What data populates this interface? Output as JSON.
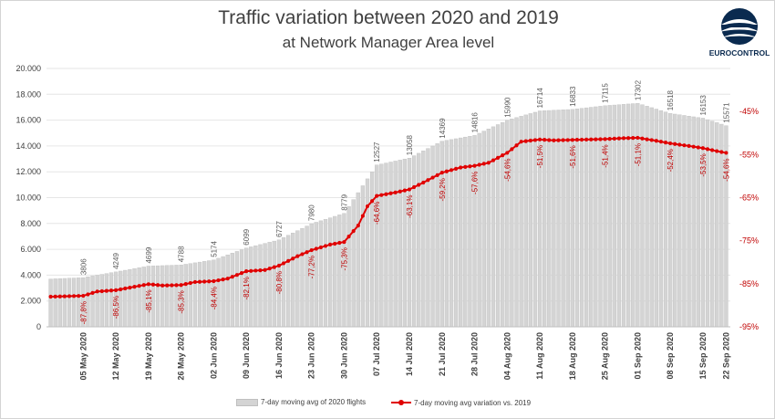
{
  "title": "Traffic variation between 2020 and 2019",
  "subtitle": "at Network Manager Area level",
  "logo": {
    "text": "EUROCONTROL",
    "color": "#0a2a4f"
  },
  "colors": {
    "bar": "#d4d4d4",
    "bar_edge": "#bfbfbf",
    "line": "#e00000",
    "line_label": "#c00000",
    "grid": "#e6e6e6",
    "axis_text": "#404040"
  },
  "chart_data": {
    "type": "bar",
    "title": "Traffic variation between 2020 and 2019",
    "subtitle": "at Network Manager Area level",
    "x_tick_labels": [
      "05 May 2020",
      "12 May 2020",
      "19 May 2020",
      "26 May 2020",
      "02 Jun 2020",
      "09 Jun 2020",
      "16 Jun 2020",
      "23 Jun 2020",
      "30 Jun 2020",
      "07 Jul 2020",
      "14 Jul 2020",
      "21 Jul 2020",
      "28 Jul 2020",
      "04 Aug 2020",
      "11 Aug 2020",
      "18 Aug 2020",
      "25 Aug 2020",
      "01 Sep 2020",
      "08 Sep 2020",
      "15 Sep 2020",
      "22 Sep 2020"
    ],
    "y_left": {
      "range": [
        0,
        20000
      ],
      "ticks": [
        "0",
        "2.000",
        "4.000",
        "6.000",
        "8.000",
        "10.000",
        "12.000",
        "14.000",
        "16.000",
        "18.000",
        "20.000"
      ]
    },
    "y_right": {
      "range": [
        -95,
        -35
      ],
      "ticks": [
        "-95%",
        "-85%",
        "-75%",
        "-65%",
        "-55%",
        "-45%"
      ]
    },
    "grid": true,
    "legend_position": "bottom",
    "series": [
      {
        "name": "7-day moving avg of 2020 flights",
        "type": "bar",
        "axis": "left",
        "anchors": [
          [
            0,
            3700
          ],
          [
            7,
            3806
          ],
          [
            14,
            4249
          ],
          [
            21,
            4699
          ],
          [
            28,
            4788
          ],
          [
            35,
            5174
          ],
          [
            42,
            6099
          ],
          [
            49,
            6727
          ],
          [
            56,
            7980
          ],
          [
            63,
            8779
          ],
          [
            70,
            12527
          ],
          [
            77,
            13058
          ],
          [
            84,
            14369
          ],
          [
            91,
            14816
          ],
          [
            98,
            15990
          ],
          [
            105,
            16714
          ],
          [
            112,
            16833
          ],
          [
            119,
            17115
          ],
          [
            126,
            17302
          ],
          [
            133,
            16518
          ],
          [
            140,
            16153
          ],
          [
            145,
            15571
          ]
        ],
        "labels": [
          {
            "day": 7,
            "value": "3806"
          },
          {
            "day": 14,
            "value": "4249"
          },
          {
            "day": 21,
            "value": "4699"
          },
          {
            "day": 28,
            "value": "4788"
          },
          {
            "day": 35,
            "value": "5174"
          },
          {
            "day": 42,
            "value": "6099"
          },
          {
            "day": 49,
            "value": "6727"
          },
          {
            "day": 56,
            "value": "7980"
          },
          {
            "day": 63,
            "value": "8779"
          },
          {
            "day": 70,
            "value": "12527"
          },
          {
            "day": 77,
            "value": "13058"
          },
          {
            "day": 84,
            "value": "14369"
          },
          {
            "day": 91,
            "value": "14816"
          },
          {
            "day": 98,
            "value": "15990"
          },
          {
            "day": 105,
            "value": "16714"
          },
          {
            "day": 112,
            "value": "16833"
          },
          {
            "day": 119,
            "value": "17115"
          },
          {
            "day": 126,
            "value": "17302"
          },
          {
            "day": 133,
            "value": "16518"
          },
          {
            "day": 140,
            "value": "16153"
          },
          {
            "day": 145,
            "value": "15571"
          }
        ]
      },
      {
        "name": "7-day moving avg variation vs. 2019",
        "type": "line",
        "axis": "right",
        "anchors": [
          [
            0,
            -88.0
          ],
          [
            7,
            -87.8
          ],
          [
            10,
            -86.8
          ],
          [
            14,
            -86.5
          ],
          [
            21,
            -85.1
          ],
          [
            24,
            -85.4
          ],
          [
            28,
            -85.3
          ],
          [
            31,
            -84.6
          ],
          [
            35,
            -84.4
          ],
          [
            38,
            -83.8
          ],
          [
            42,
            -82.1
          ],
          [
            46,
            -81.8
          ],
          [
            49,
            -80.8
          ],
          [
            53,
            -78.6
          ],
          [
            56,
            -77.2
          ],
          [
            60,
            -75.9
          ],
          [
            63,
            -75.3
          ],
          [
            66,
            -71.5
          ],
          [
            68,
            -67.0
          ],
          [
            70,
            -64.6
          ],
          [
            74,
            -63.8
          ],
          [
            77,
            -63.1
          ],
          [
            80,
            -61.5
          ],
          [
            84,
            -59.2
          ],
          [
            88,
            -58.0
          ],
          [
            91,
            -57.6
          ],
          [
            94,
            -56.9
          ],
          [
            98,
            -54.6
          ],
          [
            101,
            -52.0
          ],
          [
            105,
            -51.5
          ],
          [
            108,
            -51.7
          ],
          [
            112,
            -51.6
          ],
          [
            119,
            -51.4
          ],
          [
            123,
            -51.2
          ],
          [
            126,
            -51.1
          ],
          [
            130,
            -51.8
          ],
          [
            133,
            -52.4
          ],
          [
            137,
            -53.0
          ],
          [
            140,
            -53.5
          ],
          [
            143,
            -54.2
          ],
          [
            145,
            -54.6
          ]
        ],
        "labels": [
          {
            "day": 7,
            "value": "-87,8%"
          },
          {
            "day": 14,
            "value": "-86,5%"
          },
          {
            "day": 21,
            "value": "-85,1%"
          },
          {
            "day": 28,
            "value": "-85,3%"
          },
          {
            "day": 35,
            "value": "-84,4%"
          },
          {
            "day": 42,
            "value": "-82,1%"
          },
          {
            "day": 49,
            "value": "-80,8%"
          },
          {
            "day": 56,
            "value": "-77,2%"
          },
          {
            "day": 63,
            "value": "-75,3%"
          },
          {
            "day": 70,
            "value": "-64,6%"
          },
          {
            "day": 77,
            "value": "-63,1%"
          },
          {
            "day": 84,
            "value": "-59,2%"
          },
          {
            "day": 91,
            "value": "-57,6%"
          },
          {
            "day": 98,
            "value": "-54,6%"
          },
          {
            "day": 105,
            "value": "-51,5%"
          },
          {
            "day": 112,
            "value": "-51,6%"
          },
          {
            "day": 119,
            "value": "-51,4%"
          },
          {
            "day": 126,
            "value": "-51,1%"
          },
          {
            "day": 133,
            "value": "-52,4%"
          },
          {
            "day": 140,
            "value": "-53,5%"
          },
          {
            "day": 145,
            "value": "-54,6%"
          }
        ]
      }
    ]
  },
  "legend": {
    "bars_label": "7-day moving avg of 2020 flights",
    "line_label": "7-day moving avg variation vs. 2019"
  }
}
